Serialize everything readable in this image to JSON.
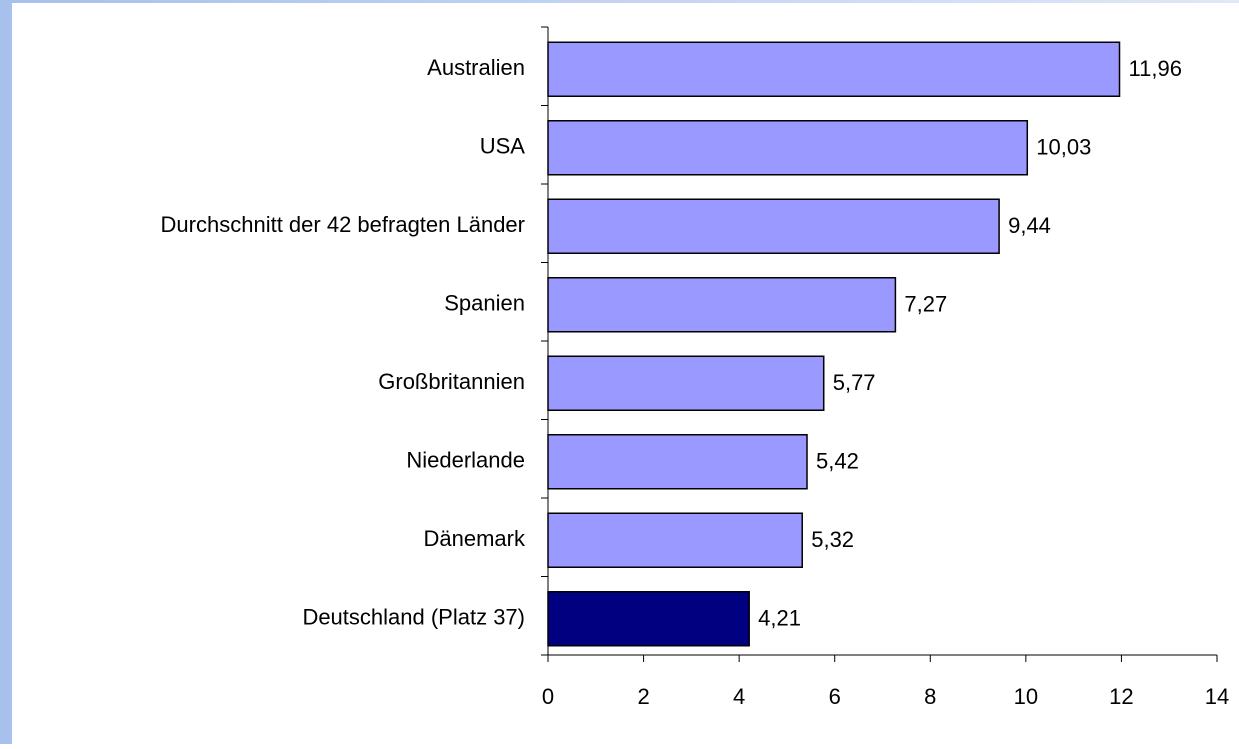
{
  "chart_data": {
    "type": "bar",
    "orientation": "horizontal",
    "categories": [
      "Australien",
      "USA",
      "Durchschnitt der 42 befragten Länder",
      "Spanien",
      "Großbritannien",
      "Niederlande",
      "Dänemark",
      "Deutschland (Platz 37)"
    ],
    "values": [
      11.96,
      10.03,
      9.44,
      7.27,
      5.77,
      5.42,
      5.32,
      4.21
    ],
    "value_labels": [
      "11,96",
      "10,03",
      "9,44",
      "7,27",
      "5,77",
      "5,42",
      "5,32",
      "4,21"
    ],
    "colors": [
      "#9999ff",
      "#9999ff",
      "#9999ff",
      "#9999ff",
      "#9999ff",
      "#9999ff",
      "#9999ff",
      "#000080"
    ],
    "xlim": [
      0,
      14
    ],
    "xticks": [
      0,
      2,
      4,
      6,
      8,
      10,
      12,
      14
    ],
    "grid": false
  }
}
